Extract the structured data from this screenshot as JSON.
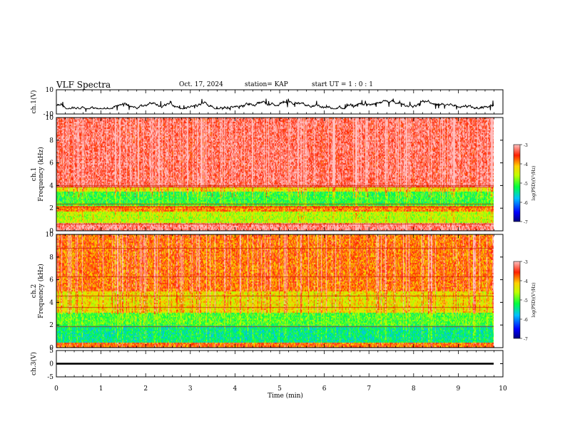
{
  "header": {
    "title": "VLF Spectra",
    "date": "Oct. 17, 2024",
    "station": "station= KAP",
    "start_ut": "start UT =  1 : 0  : 1"
  },
  "colors": {
    "background": "#ffffff",
    "axis": "#000000",
    "spectrogram_scale": [
      "#000080",
      "#0000ff",
      "#00c0ff",
      "#00ff40",
      "#c0ff00",
      "#ffd000",
      "#ff2000",
      "#ffc0c0"
    ]
  },
  "chart_data": [
    {
      "type": "line",
      "panel": "ch1-waveform",
      "ylabel": "ch.1(V)",
      "ylim": [
        -10,
        10
      ],
      "yticks": [
        "10",
        "-10"
      ],
      "xlim": [
        0,
        10
      ],
      "series": [
        {
          "values_note_range": [
            -6,
            3
          ]
        }
      ]
    },
    {
      "type": "heatmap",
      "panel": "ch1-spectrogram",
      "ylabel": "ch.1 Frequency (kHz)",
      "ylim": [
        0,
        10
      ],
      "yticks": [
        "0",
        "2",
        "4",
        "6",
        "8",
        "10"
      ],
      "xlim": [
        0,
        9.83
      ],
      "bands": [
        {
          "from": 0,
          "to": 0.8,
          "level": -3.2
        },
        {
          "from": 0.8,
          "to": 1.8,
          "level": -4.6
        },
        {
          "from": 1.8,
          "to": 2.3,
          "level": -3.9
        },
        {
          "from": 2.3,
          "to": 3.5,
          "level": -5.1
        },
        {
          "from": 3.5,
          "to": 3.9,
          "level": -4.3
        },
        {
          "from": 3.9,
          "to": 10,
          "level": -3.3
        }
      ],
      "lines_khz": [
        0.6,
        2.15,
        2.4,
        3.9,
        4.0
      ],
      "colorbar": {
        "label": "log(PSD)(V²/Hz)",
        "min": -7,
        "max": -3,
        "ticks": [
          "-3",
          "-4",
          "-5",
          "-6",
          "-7"
        ]
      }
    },
    {
      "type": "heatmap",
      "panel": "ch2-spectrogram",
      "ylabel": "ch.2 Frequency (kHz)",
      "ylim": [
        0,
        10
      ],
      "yticks": [
        "0",
        "2",
        "4",
        "6",
        "8",
        "10"
      ],
      "xlim": [
        0,
        9.83
      ],
      "bands": [
        {
          "from": 0,
          "to": 0.5,
          "level": -3.8
        },
        {
          "from": 0.5,
          "to": 2.0,
          "level": -5.4
        },
        {
          "from": 2.0,
          "to": 3.2,
          "level": -5.0
        },
        {
          "from": 3.2,
          "to": 5.0,
          "level": -4.3
        },
        {
          "from": 5.0,
          "to": 10,
          "level": -3.8
        }
      ],
      "lines_khz": [
        1.9,
        3.6,
        4.6,
        6.3,
        8.8
      ],
      "colorbar": {
        "label": "log(PSD)(V²/Hz)",
        "min": -7,
        "max": -3,
        "ticks": [
          "-3",
          "-4",
          "-5",
          "-6",
          "-7"
        ]
      }
    },
    {
      "type": "line",
      "panel": "ch3-waveform",
      "ylabel": "ch.3(V)",
      "ylim": [
        -5,
        5
      ],
      "yticks": [
        "5",
        "0",
        "-5"
      ],
      "xlim": [
        0,
        10
      ],
      "series": [
        {
          "values_note_range": [
            -0.5,
            0.5
          ]
        }
      ]
    }
  ],
  "x_axis": {
    "label": "Time (min)",
    "ticks": [
      "0",
      "1",
      "2",
      "3",
      "4",
      "5",
      "6",
      "7",
      "8",
      "9",
      "10"
    ],
    "range": [
      0,
      10
    ]
  }
}
